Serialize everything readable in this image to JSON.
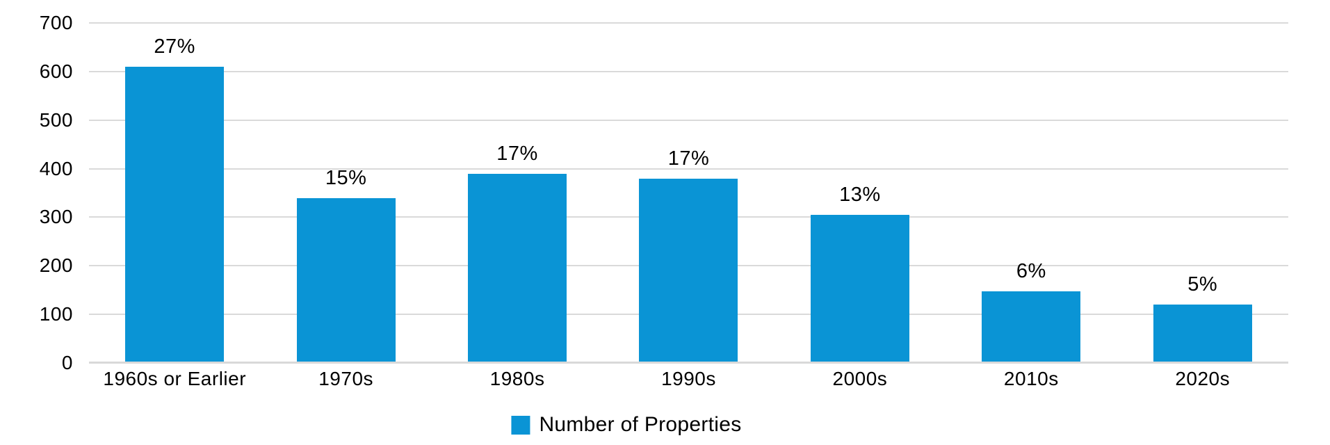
{
  "chart_data": {
    "type": "bar",
    "categories": [
      "1960s or Earlier",
      "1970s",
      "1980s",
      "1990s",
      "2000s",
      "2010s",
      "2020s"
    ],
    "values": [
      610,
      340,
      390,
      380,
      305,
      148,
      120
    ],
    "bar_labels": [
      "27%",
      "15%",
      "17%",
      "17%",
      "13%",
      "6%",
      "5%"
    ],
    "title": "",
    "xlabel": "",
    "ylabel": "",
    "ylim": [
      0,
      700
    ],
    "yticks": [
      0,
      100,
      200,
      300,
      400,
      500,
      600,
      700
    ],
    "grid": true,
    "legend": {
      "position": "bottom",
      "entries": [
        {
          "label": "Number of Properties",
          "color": "#0a94d5",
          "swatch_icon": "square"
        }
      ]
    },
    "colors": {
      "bar": "#0a94d5",
      "gridline": "#dadada",
      "axis_line": "#d9d9d9",
      "text": "#000000",
      "background": "#ffffff"
    }
  }
}
